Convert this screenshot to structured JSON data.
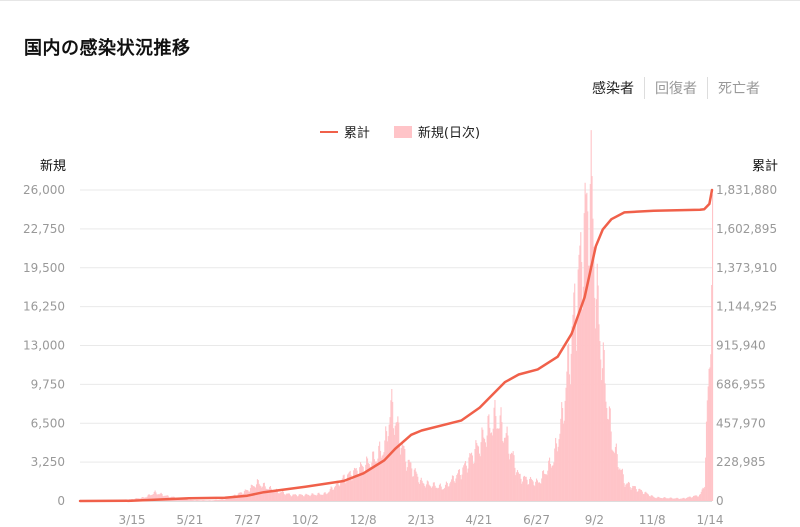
{
  "title": "国内の感染状況推移",
  "tabs": [
    "感染者",
    "回復者",
    "死亡者"
  ],
  "active_tab": 0,
  "colors": {
    "cumulative_line": "#f0604a",
    "daily_bars": "#ffc4c8",
    "grid": "#e9e9e9"
  },
  "chart_data": {
    "type": "bar+line",
    "title": "",
    "legend": [
      "累計",
      "新規(日次)"
    ],
    "legend_position": "top-center",
    "left_axis_label": "新規",
    "right_axis_label": "累計",
    "left_ticks": [
      "0",
      "3,250",
      "6,500",
      "9,750",
      "13,000",
      "16,250",
      "19,500",
      "22,750",
      "26,000"
    ],
    "right_ticks": [
      "0",
      "228,985",
      "457,970",
      "686,955",
      "915,940",
      "1,144,925",
      "1,373,910",
      "1,602,895",
      "1,831,880"
    ],
    "left_ylim": [
      0,
      26000
    ],
    "right_ylim": [
      0,
      1831880
    ],
    "x_ticks": [
      "3/15",
      "5/21",
      "7/27",
      "10/2",
      "12/8",
      "2/13",
      "4/21",
      "6/27",
      "9/2",
      "11/8",
      "1/14"
    ],
    "grid": true,
    "series": [
      {
        "name": "新規(日次)",
        "type": "bar",
        "x": [
          "2020-01-16",
          "2020-02-15",
          "2020-03-15",
          "2020-03-30",
          "2020-04-11",
          "2020-04-25",
          "2020-05-21",
          "2020-06-15",
          "2020-07-01",
          "2020-07-27",
          "2020-08-07",
          "2020-08-25",
          "2020-09-15",
          "2020-10-02",
          "2020-10-25",
          "2020-11-15",
          "2020-12-08",
          "2020-12-20",
          "2021-01-01",
          "2021-01-08",
          "2021-01-14",
          "2021-01-25",
          "2021-02-13",
          "2021-03-10",
          "2021-03-31",
          "2021-04-21",
          "2021-05-01",
          "2021-05-10",
          "2021-05-20",
          "2021-06-05",
          "2021-06-27",
          "2021-07-15",
          "2021-07-25",
          "2021-08-05",
          "2021-08-12",
          "2021-08-20",
          "2021-08-27",
          "2021-09-02",
          "2021-09-10",
          "2021-09-20",
          "2021-10-05",
          "2021-11-08",
          "2021-12-10",
          "2021-12-31",
          "2022-01-05",
          "2022-01-08",
          "2022-01-11",
          "2022-01-14"
        ],
        "values": [
          0,
          10,
          150,
          300,
          700,
          400,
          80,
          50,
          150,
          900,
          1500,
          900,
          500,
          500,
          600,
          1900,
          2900,
          3500,
          4500,
          7800,
          6500,
          3500,
          1500,
          1100,
          2500,
          4800,
          6000,
          7000,
          5500,
          2000,
          1500,
          3500,
          7000,
          14000,
          18000,
          23000,
          25800,
          17000,
          11000,
          5000,
          1500,
          300,
          200,
          500,
          1500,
          7500,
          13000,
          21000
        ]
      },
      {
        "name": "累計",
        "type": "line",
        "x": [
          "2020-01-16",
          "2020-03-15",
          "2020-05-21",
          "2020-07-01",
          "2020-07-27",
          "2020-08-15",
          "2020-10-02",
          "2020-11-15",
          "2020-12-08",
          "2021-01-01",
          "2021-01-14",
          "2021-02-01",
          "2021-02-13",
          "2021-03-31",
          "2021-04-21",
          "2021-05-20",
          "2021-06-05",
          "2021-06-27",
          "2021-07-20",
          "2021-08-05",
          "2021-08-20",
          "2021-09-02",
          "2021-09-10",
          "2021-09-20",
          "2021-10-05",
          "2021-11-08",
          "2021-12-31",
          "2022-01-05",
          "2022-01-11",
          "2022-01-14"
        ],
        "values": [
          0,
          1000,
          16700,
          18800,
          31200,
          52000,
          84000,
          118000,
          163000,
          240000,
          310000,
          390000,
          415000,
          475000,
          550000,
          700000,
          745000,
          775000,
          850000,
          985000,
          1200000,
          1500000,
          1600000,
          1660000,
          1700000,
          1710000,
          1715000,
          1718000,
          1750000,
          1831880
        ]
      }
    ]
  }
}
